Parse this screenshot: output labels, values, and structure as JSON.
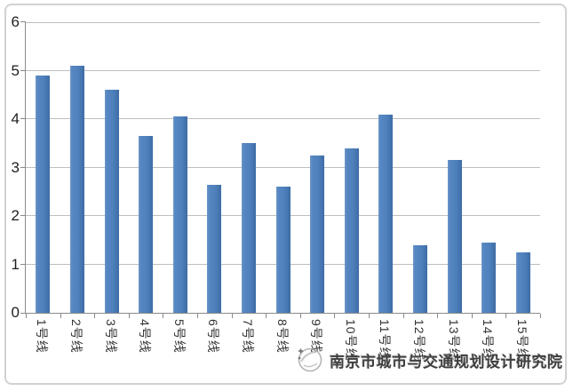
{
  "chart_data": {
    "type": "bar",
    "title": "",
    "xlabel": "",
    "ylabel": "",
    "categories": [
      "1号线",
      "2号线",
      "3号线",
      "4号线",
      "5号线",
      "6号线",
      "7号线",
      "8号线",
      "9号线",
      "10号线",
      "11号线",
      "12号线",
      "13号线",
      "14号线",
      "15号线"
    ],
    "values": [
      4.9,
      5.1,
      4.6,
      3.65,
      4.05,
      2.65,
      3.5,
      2.6,
      3.25,
      3.4,
      4.1,
      1.4,
      3.15,
      1.45,
      1.25
    ],
    "ylim": [
      0,
      6
    ],
    "y_ticks": [
      0,
      1,
      2,
      3,
      4,
      5,
      6
    ],
    "grid": true,
    "legend": false,
    "x_label_rotation_deg": 90
  },
  "watermark": {
    "text": "南京市城市与交通规划设计研究院",
    "logo": "institute-logo"
  },
  "colors": {
    "bar": "#4f81bd",
    "grid": "#bebebe",
    "axis": "#8a8a8a",
    "frame_border": "#d2d2d2",
    "tick_label": "#1f1f1f",
    "watermark_text": "#3e3e3e",
    "background": "#ffffff"
  }
}
